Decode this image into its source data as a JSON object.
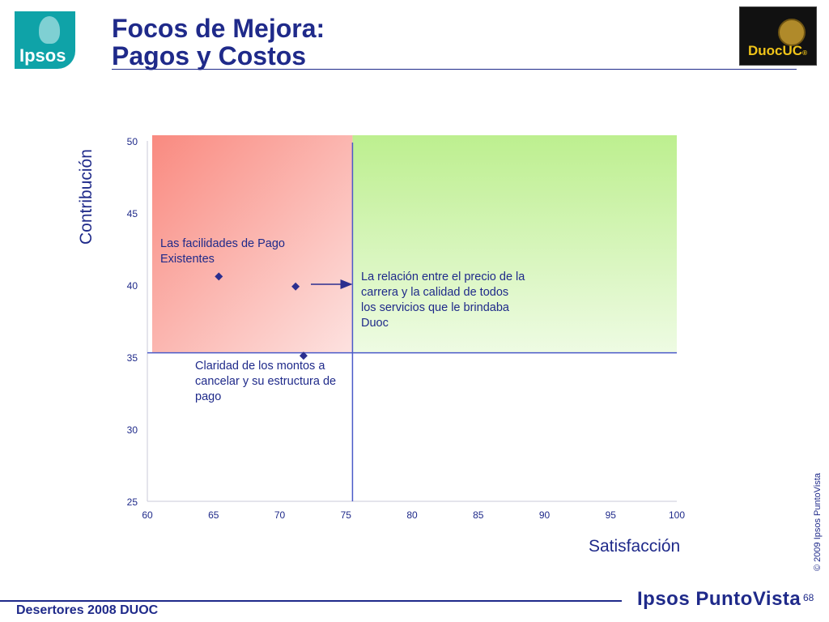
{
  "header": {
    "title_line1": "Focos de Mejora:",
    "title_line2": "Pagos y Costos",
    "logo_left": "Ipsos",
    "logo_right": "DuocUC"
  },
  "chart_data": {
    "type": "scatter",
    "xlabel": "Satisfacción",
    "ylabel": "Contribución",
    "xlim": [
      60,
      100
    ],
    "ylim": [
      25,
      50
    ],
    "xticks": [
      60,
      65,
      70,
      75,
      80,
      85,
      90,
      95,
      100
    ],
    "yticks": [
      25,
      30,
      35,
      40,
      45,
      50
    ],
    "quadrant_split": {
      "x": 75.5,
      "y": 35.3
    },
    "quadrant_colors": {
      "low_satisfaction_high_contribution": "#f98a80",
      "high_satisfaction_high_contribution": "#bdef8f"
    },
    "marker_color": "#2b2f8f",
    "points": [
      {
        "x": 65.4,
        "y": 40.6,
        "label": "Las facilidades de Pago Existentes"
      },
      {
        "x": 71.2,
        "y": 39.9,
        "label": "La relación entre el precio de la carrera y la calidad de todos los servicios que le brindaba Duoc"
      },
      {
        "x": 71.8,
        "y": 35.1,
        "label": "Claridad de los montos a cancelar y su estructura de pago"
      }
    ],
    "annotation_lines": {
      "p1": [
        "Las facilidades de Pago",
        "Existentes"
      ],
      "p2": [
        "La relación entre el precio de la",
        "carrera y la calidad de todos",
        "los servicios que le brindaba",
        "Duoc"
      ],
      "p3": [
        "Claridad de los montos a",
        "cancelar y su estructura de",
        "pago"
      ]
    }
  },
  "footer": {
    "left": "Desertores 2008 DUOC",
    "brand": "Ipsos PuntoVista",
    "page": "68",
    "copyright": "© 2009 Ipsos PuntoVista"
  }
}
